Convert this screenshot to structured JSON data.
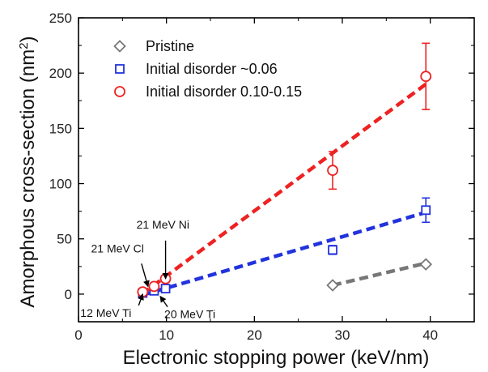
{
  "chart_data": {
    "type": "scatter",
    "xlabel": "Electronic stopping power (keV/nm)",
    "ylabel_main": "Amorphous cross-section (nm",
    "ylabel_sup": "2",
    "ylabel_close": ")",
    "xlim": [
      0,
      45
    ],
    "ylim": [
      -25,
      250
    ],
    "xticks": [
      0,
      10,
      20,
      30,
      40
    ],
    "yticks": [
      0,
      50,
      100,
      150,
      200,
      250
    ],
    "grid": false,
    "legend_position": "top-left",
    "series": [
      {
        "name": "Pristine",
        "color": "#777777",
        "marker": "diamond",
        "points": [
          {
            "x": 28.9,
            "y": 8,
            "err": 0
          },
          {
            "x": 39.5,
            "y": 27,
            "err": 0
          }
        ],
        "fit": [
          [
            28.9,
            8
          ],
          [
            39.5,
            28
          ]
        ]
      },
      {
        "name": "Initial disorder ~0.06",
        "color": "#2233dd",
        "marker": "square",
        "points": [
          {
            "x": 7.3,
            "y": 1,
            "err": 0
          },
          {
            "x": 8.6,
            "y": 3,
            "err": 0
          },
          {
            "x": 9.9,
            "y": 5,
            "err": 0
          },
          {
            "x": 28.9,
            "y": 40,
            "err": 4
          },
          {
            "x": 39.5,
            "y": 76,
            "err": 11
          }
        ],
        "fit": [
          [
            7.2,
            -1
          ],
          [
            39.5,
            74
          ]
        ]
      },
      {
        "name": "Initial disorder 0.10-0.15",
        "color": "#ee2222",
        "marker": "circle",
        "points": [
          {
            "x": 7.3,
            "y": 2,
            "err": 0
          },
          {
            "x": 8.6,
            "y": 7,
            "err": 0
          },
          {
            "x": 9.9,
            "y": 14,
            "err": 0
          },
          {
            "x": 28.9,
            "y": 112,
            "err": 17
          },
          {
            "x": 39.5,
            "y": 197,
            "err": 30
          }
        ],
        "fit": [
          [
            7.2,
            0
          ],
          [
            39.5,
            190
          ]
        ]
      }
    ],
    "annotations": [
      {
        "text": "21 MeV Ni",
        "target": [
          9.9,
          14
        ],
        "anchor": "above"
      },
      {
        "text": "21 MeV Cl",
        "target": [
          7.9,
          7
        ],
        "anchor": "upper-left"
      },
      {
        "text": "12 MeV Ti",
        "target": [
          7.3,
          0
        ],
        "anchor": "lower-left"
      },
      {
        "text": "20 MeV Ti",
        "target": [
          9.3,
          -2
        ],
        "anchor": "lower-right"
      }
    ]
  }
}
